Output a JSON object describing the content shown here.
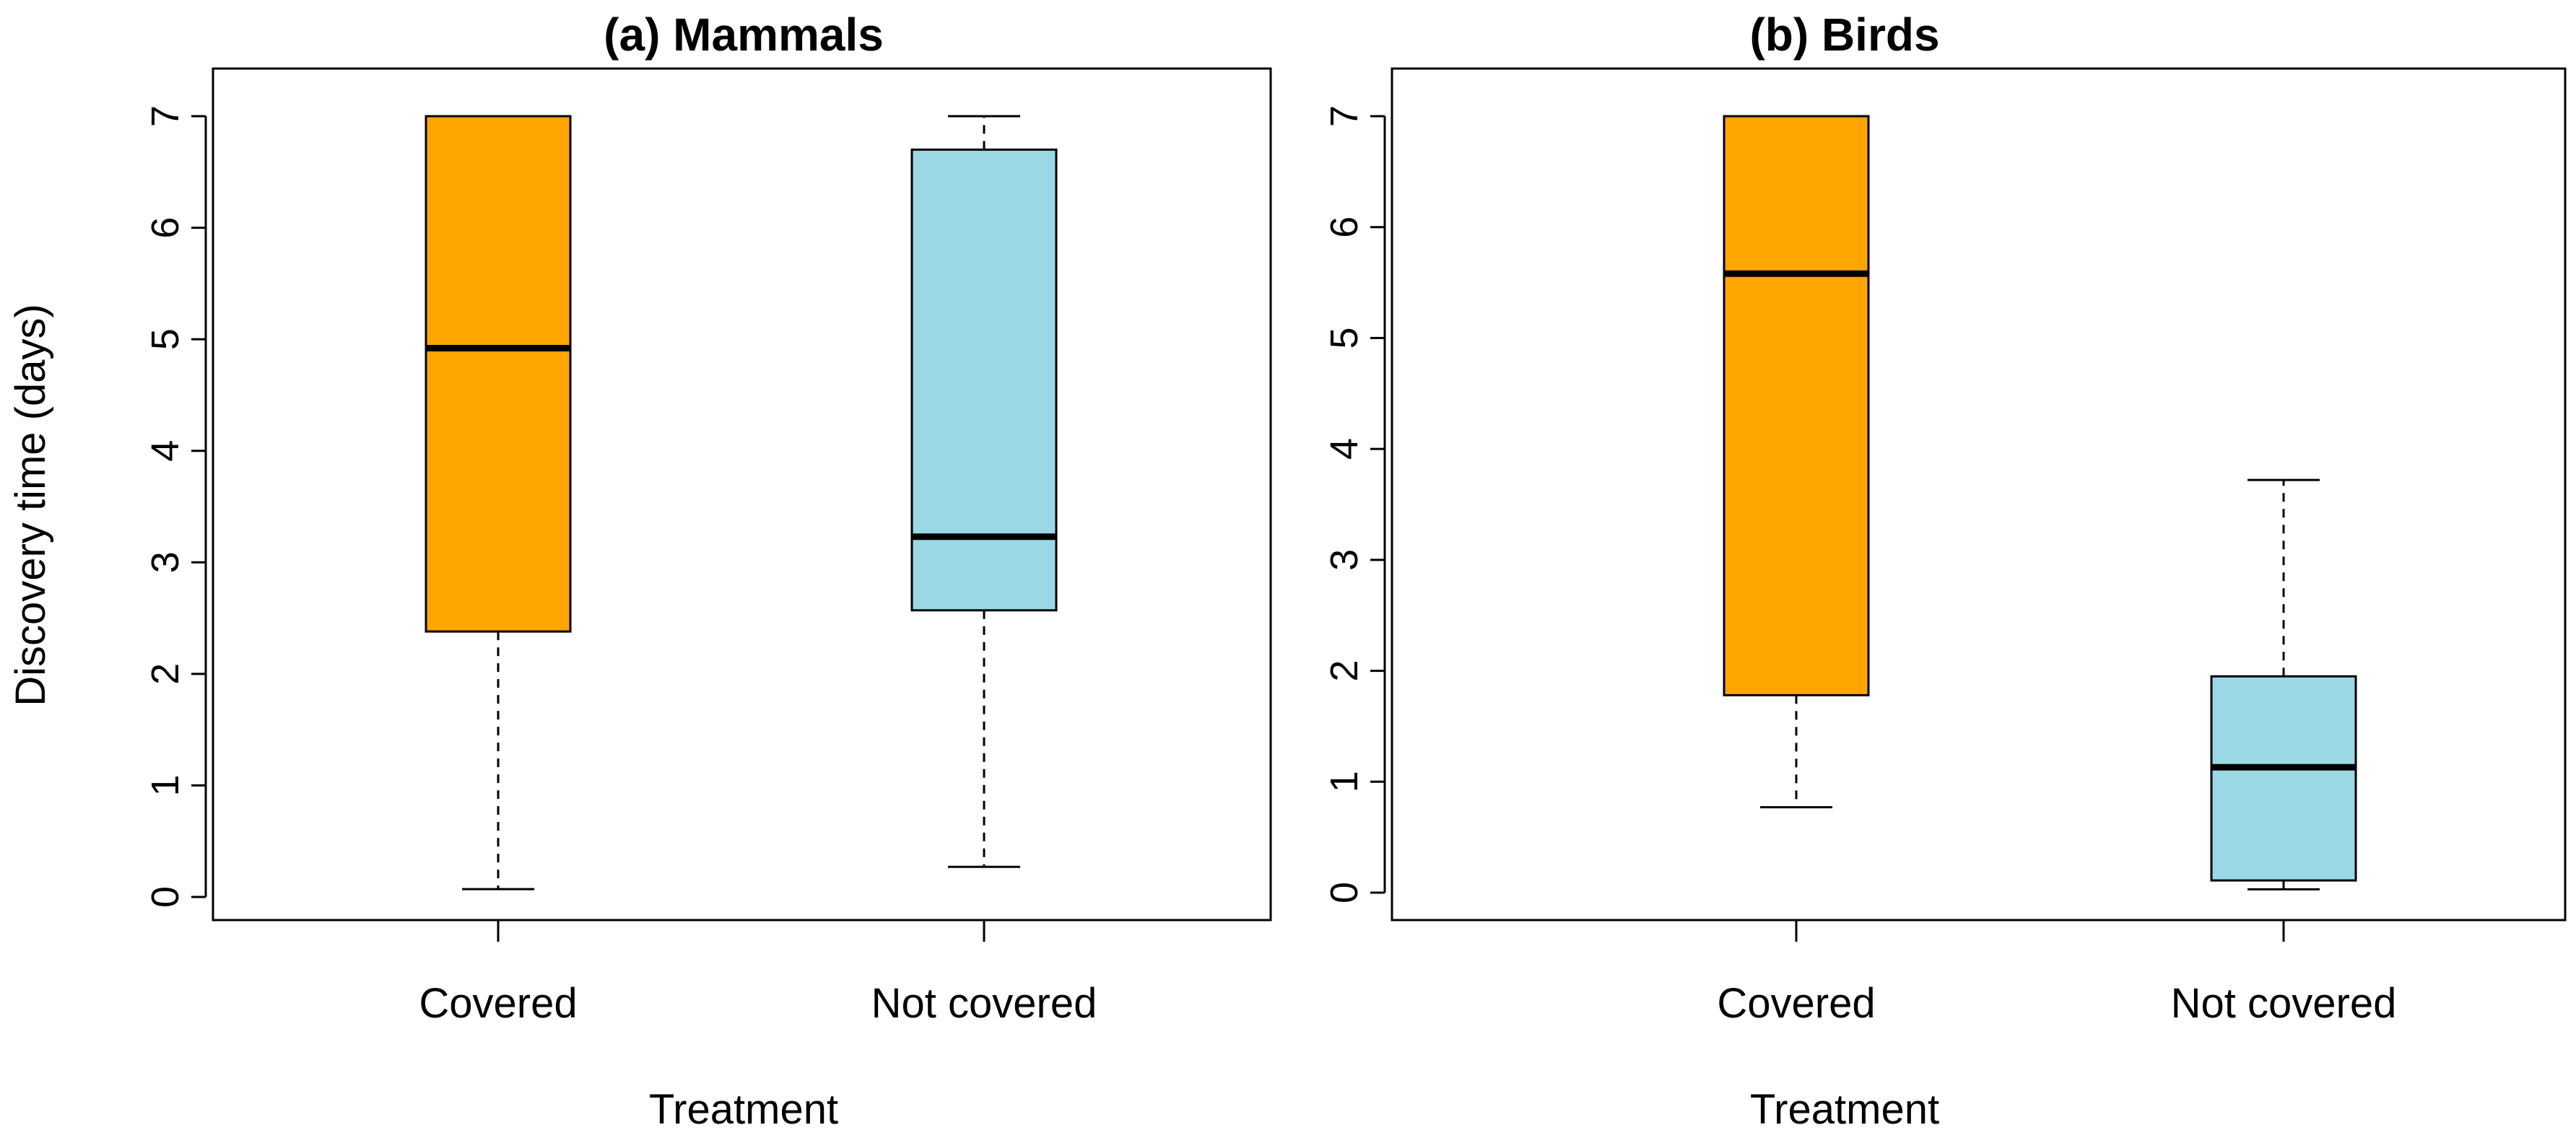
{
  "colors": {
    "covered": "#FFA500",
    "not_covered": "#9AD8E6",
    "line": "#000000",
    "background": "#FFFFFF"
  },
  "chart_data": [
    {
      "type": "box",
      "title": "(a) Mammals",
      "xlabel": "Treatment",
      "ylabel": "Discovery time (days)",
      "ylim": [
        0,
        7
      ],
      "yticks": [
        "0",
        "1",
        "2",
        "3",
        "4",
        "5",
        "6",
        "7"
      ],
      "categories": [
        "Covered",
        "Not covered"
      ],
      "boxes": [
        {
          "category": "Covered",
          "min": 0.07,
          "q1": 2.38,
          "median": 4.92,
          "q3": 7.0,
          "max": 7.0,
          "color": "#FFA500"
        },
        {
          "category": "Not covered",
          "min": 0.27,
          "q1": 2.57,
          "median": 3.23,
          "q3": 6.7,
          "max": 7.0,
          "color": "#9AD8E6"
        }
      ]
    },
    {
      "type": "box",
      "title": "(b) Birds",
      "xlabel": "Treatment",
      "ylabel": "",
      "ylim": [
        0,
        7
      ],
      "yticks": [
        "0",
        "1",
        "2",
        "3",
        "4",
        "5",
        "6",
        "7"
      ],
      "categories": [
        "Covered",
        "Not covered"
      ],
      "boxes": [
        {
          "category": "Covered",
          "min": 0.77,
          "q1": 1.78,
          "median": 5.58,
          "q3": 7.0,
          "max": 7.0,
          "color": "#FFA500"
        },
        {
          "category": "Not covered",
          "min": 0.03,
          "q1": 0.11,
          "median": 1.13,
          "q3": 1.95,
          "max": 3.72,
          "color": "#9AD8E6"
        }
      ]
    }
  ]
}
